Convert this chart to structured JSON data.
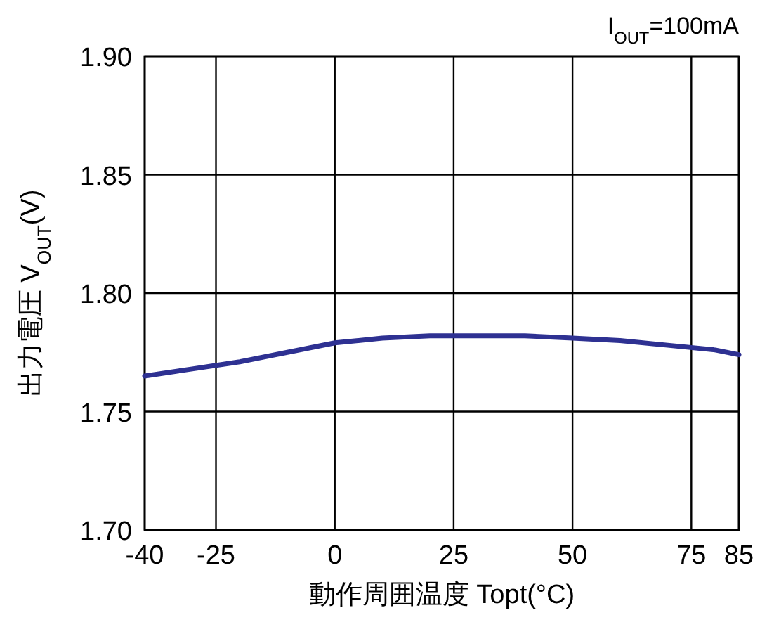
{
  "chart_data": {
    "type": "line",
    "xlabel": "動作周囲温度 Topt(°C)",
    "ylabel": "出力電圧 V$_{OUT}$(V)",
    "annotations": [
      "I$_{OUT}$=100mA"
    ],
    "xlim": [
      -40,
      85
    ],
    "ylim": [
      1.7,
      1.9
    ],
    "xticks": [
      -40,
      -25,
      0,
      25,
      50,
      75,
      85
    ],
    "yticks": [
      {
        "value": 1.7,
        "label": "1.70"
      },
      {
        "value": 1.75,
        "label": "1.75"
      },
      {
        "value": 1.8,
        "label": "1.80"
      },
      {
        "value": 1.85,
        "label": "1.85"
      },
      {
        "value": 1.9,
        "label": "1.90"
      }
    ],
    "grid": true,
    "marker": "none",
    "line_style": "solid",
    "series": [
      {
        "color": "#2e3192",
        "x": [
          -40,
          -30,
          -20,
          -10,
          0,
          10,
          20,
          30,
          40,
          50,
          60,
          70,
          80,
          85
        ],
        "values": [
          1.765,
          1.768,
          1.771,
          1.775,
          1.779,
          1.781,
          1.782,
          1.782,
          1.782,
          1.781,
          1.78,
          1.778,
          1.776,
          1.774
        ]
      }
    ]
  }
}
